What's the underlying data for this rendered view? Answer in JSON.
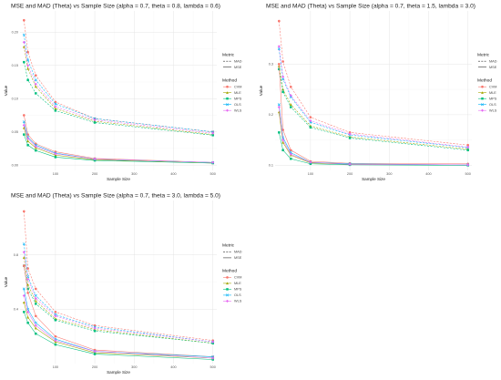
{
  "chart_data": [
    {
      "type": "line",
      "title": "MSE and MAD (Theta) vs Sample Size (alpha = 0.7, theta = 0.8, lambda = 0.6)",
      "xlabel": "Sample Size",
      "ylabel": "Value",
      "x": [
        20,
        30,
        50,
        100,
        200,
        500
      ],
      "xticks": [
        100,
        200,
        300,
        400,
        500
      ],
      "xtick_labels": [
        "100",
        "200",
        "300",
        "400",
        "500"
      ],
      "xlim": [
        10,
        510
      ],
      "yticks": [
        0.0,
        0.05,
        0.1,
        0.15,
        0.2
      ],
      "ytick_labels": [
        "0.00",
        "0.05",
        "0.10",
        "0.15",
        "0.20"
      ],
      "ylim": [
        -0.008,
        0.232
      ],
      "grid": true,
      "series": [
        {
          "name": "CVM",
          "metric": "MAD",
          "values": [
            0.218,
            0.17,
            0.135,
            0.095,
            0.07,
            0.05
          ]
        },
        {
          "name": "MLE",
          "metric": "MAD",
          "values": [
            0.178,
            0.145,
            0.118,
            0.085,
            0.066,
            0.046
          ]
        },
        {
          "name": "MPS",
          "metric": "MAD",
          "values": [
            0.155,
            0.128,
            0.108,
            0.082,
            0.064,
            0.045
          ]
        },
        {
          "name": "OLS",
          "metric": "MAD",
          "values": [
            0.196,
            0.158,
            0.128,
            0.092,
            0.07,
            0.05
          ]
        },
        {
          "name": "WLS",
          "metric": "MAD",
          "values": [
            0.185,
            0.15,
            0.122,
            0.088,
            0.068,
            0.048
          ]
        },
        {
          "name": "CVM",
          "metric": "MSE",
          "values": [
            0.075,
            0.046,
            0.032,
            0.02,
            0.01,
            0.004
          ]
        },
        {
          "name": "MLE",
          "metric": "MSE",
          "values": [
            0.056,
            0.036,
            0.026,
            0.015,
            0.008,
            0.003
          ]
        },
        {
          "name": "MPS",
          "metric": "MSE",
          "values": [
            0.046,
            0.03,
            0.022,
            0.012,
            0.007,
            0.003
          ]
        },
        {
          "name": "OLS",
          "metric": "MSE",
          "values": [
            0.065,
            0.042,
            0.03,
            0.018,
            0.009,
            0.004
          ]
        },
        {
          "name": "WLS",
          "metric": "MSE",
          "values": [
            0.06,
            0.04,
            0.028,
            0.017,
            0.009,
            0.004
          ]
        }
      ],
      "legend": {
        "position": "right"
      }
    },
    {
      "type": "line",
      "title": "MSE and MAD (Theta) vs Sample Size (alpha = 0.7, theta = 1.5, lambda = 3.0)",
      "xlabel": "Sample Size",
      "ylabel": "Value",
      "x": [
        20,
        30,
        50,
        100,
        200,
        500
      ],
      "xticks": [
        100,
        200,
        300,
        400,
        500
      ],
      "xtick_labels": [
        "100",
        "200",
        "300",
        "400",
        "500"
      ],
      "xlim": [
        10,
        510
      ],
      "yticks": [
        0.1,
        0.2,
        0.3
      ],
      "ytick_labels": [
        "0.1",
        "0.2",
        "0.3"
      ],
      "ylim": [
        0.09,
        0.405
      ],
      "grid": true,
      "series": [
        {
          "name": "CVM",
          "metric": "MAD",
          "values": [
            0.385,
            0.305,
            0.255,
            0.195,
            0.165,
            0.14
          ]
        },
        {
          "name": "MLE",
          "metric": "MAD",
          "values": [
            0.296,
            0.25,
            0.22,
            0.178,
            0.156,
            0.132
          ]
        },
        {
          "name": "MPS",
          "metric": "MAD",
          "values": [
            0.29,
            0.245,
            0.215,
            0.175,
            0.154,
            0.13
          ]
        },
        {
          "name": "OLS",
          "metric": "MAD",
          "values": [
            0.33,
            0.27,
            0.235,
            0.185,
            0.16,
            0.135
          ]
        },
        {
          "name": "WLS",
          "metric": "MAD",
          "values": [
            0.335,
            0.275,
            0.238,
            0.188,
            0.162,
            0.136
          ]
        },
        {
          "name": "CVM",
          "metric": "MSE",
          "values": [
            0.3,
            0.17,
            0.13,
            0.108,
            0.104,
            0.103
          ]
        },
        {
          "name": "MLE",
          "metric": "MSE",
          "values": [
            0.205,
            0.145,
            0.12,
            0.105,
            0.102,
            0.101
          ]
        },
        {
          "name": "MPS",
          "metric": "MSE",
          "values": [
            0.165,
            0.13,
            0.113,
            0.103,
            0.101,
            0.1
          ]
        },
        {
          "name": "OLS",
          "metric": "MSE",
          "values": [
            0.22,
            0.155,
            0.125,
            0.106,
            0.103,
            0.101
          ]
        },
        {
          "name": "WLS",
          "metric": "MSE",
          "values": [
            0.215,
            0.15,
            0.122,
            0.106,
            0.102,
            0.101
          ]
        }
      ],
      "legend": {
        "position": "right"
      }
    },
    {
      "type": "line",
      "title": "MSE and MAD (Theta) vs Sample Size (alpha = 0.7, theta = 3.0, lambda = 5.0)",
      "xlabel": "Sample Size",
      "ylabel": "Value",
      "x": [
        20,
        30,
        50,
        100,
        200,
        500
      ],
      "xticks": [
        100,
        200,
        300,
        400,
        500
      ],
      "xtick_labels": [
        "100",
        "200",
        "300",
        "400",
        "500"
      ],
      "xlim": [
        10,
        510
      ],
      "yticks": [
        0.4,
        0.8
      ],
      "ytick_labels": [
        "0.4",
        "0.8"
      ],
      "ylim": [
        0.0,
        1.2
      ],
      "grid": true,
      "series": [
        {
          "name": "CVM",
          "metric": "MAD",
          "values": [
            1.12,
            0.7,
            0.55,
            0.38,
            0.28,
            0.17
          ]
        },
        {
          "name": "MLE",
          "metric": "MAD",
          "values": [
            0.78,
            0.58,
            0.46,
            0.33,
            0.25,
            0.15
          ]
        },
        {
          "name": "MPS",
          "metric": "MAD",
          "values": [
            0.72,
            0.55,
            0.44,
            0.32,
            0.24,
            0.15
          ]
        },
        {
          "name": "OLS",
          "metric": "MAD",
          "values": [
            0.88,
            0.64,
            0.5,
            0.36,
            0.27,
            0.16
          ]
        },
        {
          "name": "WLS",
          "metric": "MAD",
          "values": [
            0.82,
            0.62,
            0.48,
            0.35,
            0.26,
            0.16
          ]
        },
        {
          "name": "CVM",
          "metric": "MSE",
          "values": [
            0.72,
            0.52,
            0.35,
            0.2,
            0.1,
            0.05
          ]
        },
        {
          "name": "MLE",
          "metric": "MSE",
          "values": [
            0.45,
            0.34,
            0.26,
            0.16,
            0.08,
            0.04
          ]
        },
        {
          "name": "MPS",
          "metric": "MSE",
          "values": [
            0.38,
            0.3,
            0.22,
            0.14,
            0.07,
            0.03
          ]
        },
        {
          "name": "OLS",
          "metric": "MSE",
          "values": [
            0.55,
            0.4,
            0.3,
            0.18,
            0.09,
            0.05
          ]
        },
        {
          "name": "WLS",
          "metric": "MSE",
          "values": [
            0.5,
            0.38,
            0.28,
            0.17,
            0.09,
            0.04
          ]
        }
      ],
      "legend": {
        "position": "right"
      }
    }
  ],
  "legend": {
    "metric_title": "Metric",
    "metric_items": [
      "MAD",
      "MSE"
    ],
    "method_title": "Method",
    "method_items": [
      "CVM",
      "MLE",
      "MPS",
      "OLS",
      "WLS"
    ]
  },
  "colors": {
    "CVM": "#f8766d",
    "MLE": "#a3a500",
    "MPS": "#00bf7d",
    "OLS": "#00b0f6",
    "WLS": "#e76bf3"
  }
}
